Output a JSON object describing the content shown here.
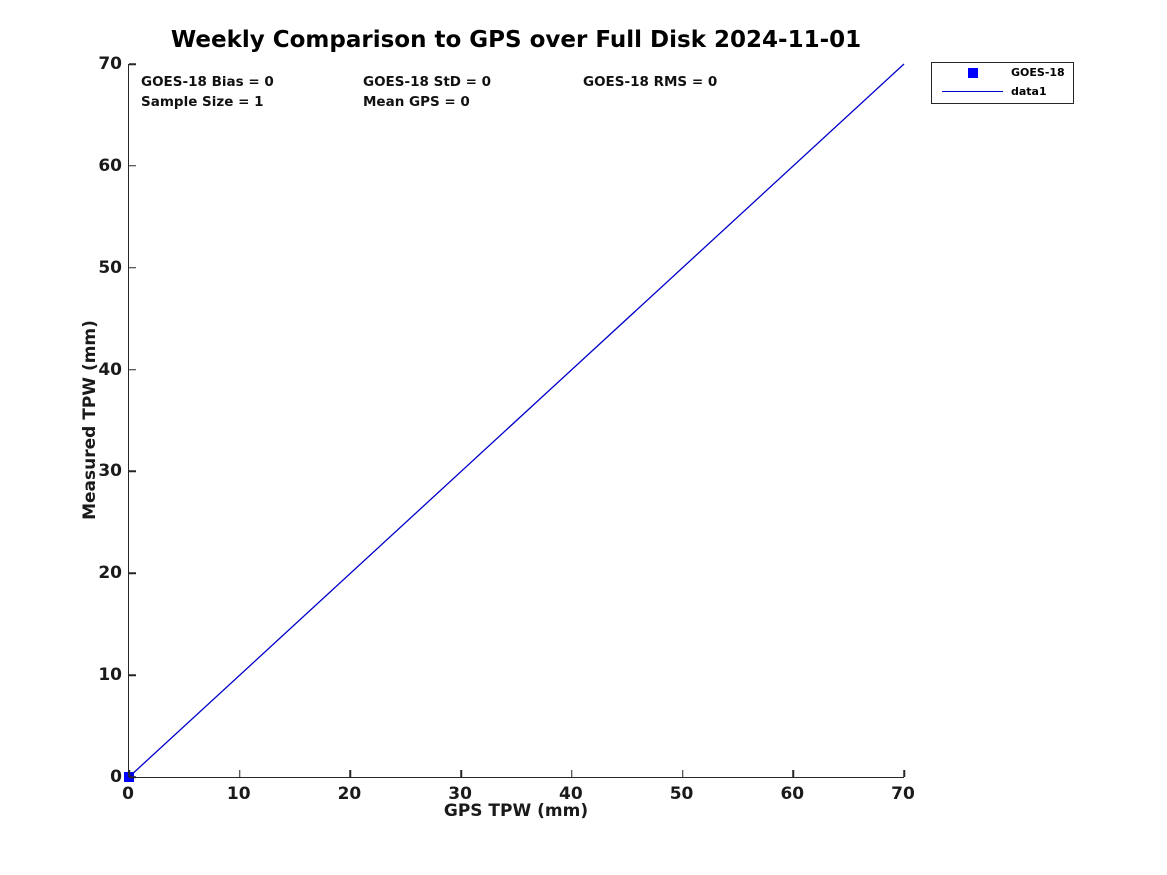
{
  "figure": {
    "background": "#ffffff"
  },
  "chart": {
    "title": "Weekly Comparison to GPS over Full Disk 2024-11-01",
    "xlabel": "GPS TPW (mm)",
    "ylabel": "Measured TPW (mm)",
    "stats": {
      "bias": "GOES-18 Bias = 0",
      "std": "GOES-18 StD = 0",
      "rms": "GOES-18 RMS = 0",
      "sample_size": "Sample Size = 1",
      "mean_gps": "Mean GPS = 0"
    },
    "legend": {
      "items": [
        {
          "label": "GOES-18",
          "symbol": "square-marker",
          "color": "#0000ff"
        },
        {
          "label": "data1",
          "symbol": "line",
          "color": "#0000cc"
        }
      ]
    }
  },
  "colors": {
    "marker_blue": "#0000ff",
    "line_blue": "#0000cc",
    "axis": "#262626",
    "text": "#1a1a1a"
  },
  "chart_data": {
    "type": "scatter",
    "title": "Weekly Comparison to GPS over Full Disk 2024-11-01",
    "xlabel": "GPS TPW (mm)",
    "ylabel": "Measured TPW (mm)",
    "xlim": [
      0,
      70
    ],
    "ylim": [
      0,
      70
    ],
    "xticks": [
      0,
      10,
      20,
      30,
      40,
      50,
      60,
      70
    ],
    "yticks": [
      0,
      10,
      20,
      30,
      40,
      50,
      60,
      70
    ],
    "grid": false,
    "legend_position": "top-right-outside",
    "series": [
      {
        "name": "GOES-18",
        "type": "scatter",
        "marker": "square",
        "color": "#0000ff",
        "x": [
          0
        ],
        "y": [
          0
        ]
      },
      {
        "name": "data1",
        "type": "line",
        "color": "#0000cc",
        "x": [
          0,
          70
        ],
        "y": [
          0,
          70
        ]
      }
    ],
    "annotations": [
      "GOES-18 Bias = 0",
      "GOES-18 StD = 0",
      "GOES-18 RMS = 0",
      "Sample Size = 1",
      "Mean GPS = 0"
    ]
  }
}
